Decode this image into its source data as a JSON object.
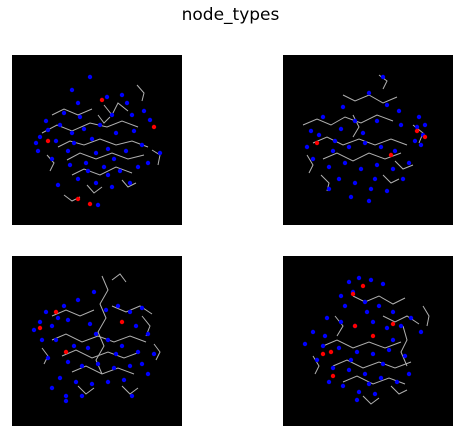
{
  "figure": {
    "title": "node_types"
  },
  "colors": {
    "background": "#000000",
    "branch_color": "#b0b0b0",
    "node_normal": "#0000ff",
    "node_special": "#ff0000"
  },
  "panels": [
    {
      "id": "top-left",
      "n_blue": 48,
      "n_red": 5
    },
    {
      "id": "top-right",
      "n_blue": 42,
      "n_red": 4
    },
    {
      "id": "bottom-left",
      "n_blue": 44,
      "n_red": 4
    },
    {
      "id": "bottom-right",
      "n_blue": 44,
      "n_red": 8
    }
  ]
}
